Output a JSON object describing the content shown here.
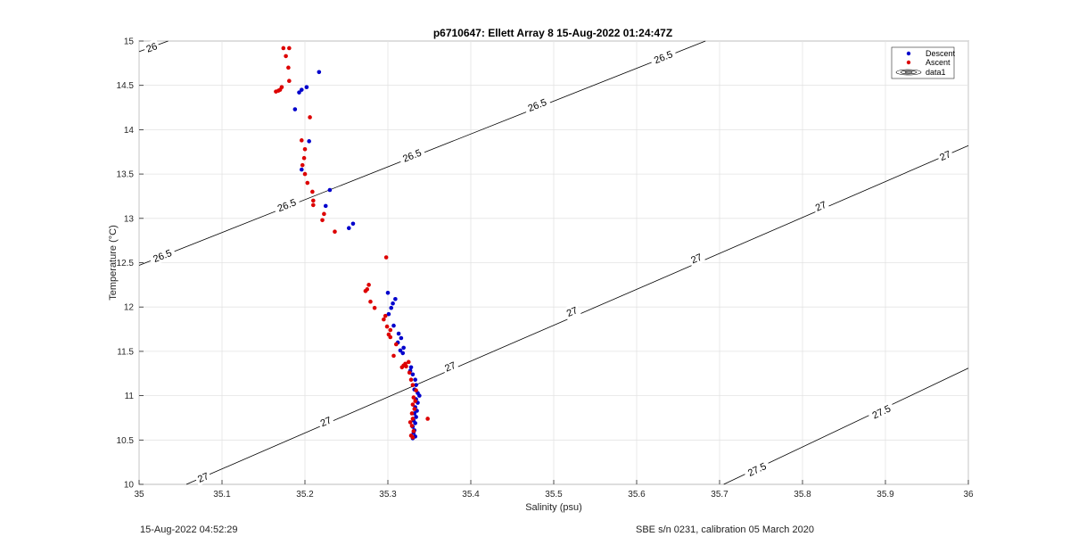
{
  "chart_data": {
    "type": "scatter",
    "title": "p6710647: Ellett Array 8 15-Aug-2022 01:24:47Z",
    "xlabel": "Salinity (psu)",
    "ylabel": "Temperature (°C)",
    "xlim": [
      35,
      36
    ],
    "ylim": [
      10,
      15
    ],
    "grid": true,
    "legend_position": "top-right",
    "x_ticks": [
      "35",
      "35.1",
      "35.2",
      "35.3",
      "35.4",
      "35.5",
      "35.6",
      "35.7",
      "35.8",
      "35.9",
      "36"
    ],
    "y_ticks": [
      "10",
      "10.5",
      "11",
      "11.5",
      "12",
      "12.5",
      "13",
      "13.5",
      "14",
      "14.5",
      "15"
    ],
    "series": [
      {
        "name": "Descent",
        "color": "#0000cc",
        "points": [
          [
            35.217,
            14.65
          ],
          [
            35.202,
            14.48
          ],
          [
            35.196,
            14.45
          ],
          [
            35.193,
            14.42
          ],
          [
            35.188,
            14.23
          ],
          [
            35.205,
            13.87
          ],
          [
            35.196,
            13.55
          ],
          [
            35.23,
            13.32
          ],
          [
            35.225,
            13.14
          ],
          [
            35.258,
            12.94
          ],
          [
            35.253,
            12.89
          ],
          [
            35.3,
            12.16
          ],
          [
            35.309,
            12.09
          ],
          [
            35.306,
            12.04
          ],
          [
            35.304,
            11.99
          ],
          [
            35.301,
            11.92
          ],
          [
            35.307,
            11.79
          ],
          [
            35.313,
            11.7
          ],
          [
            35.316,
            11.65
          ],
          [
            35.312,
            11.6
          ],
          [
            35.319,
            11.54
          ],
          [
            35.315,
            11.51
          ],
          [
            35.318,
            11.48
          ],
          [
            35.328,
            11.32
          ],
          [
            35.327,
            11.28
          ],
          [
            35.33,
            11.24
          ],
          [
            35.333,
            11.18
          ],
          [
            35.334,
            11.12
          ],
          [
            35.332,
            11.07
          ],
          [
            35.336,
            11.03
          ],
          [
            35.338,
            11.0
          ],
          [
            35.334,
            10.96
          ],
          [
            35.336,
            10.92
          ],
          [
            35.333,
            10.87
          ],
          [
            35.335,
            10.83
          ],
          [
            35.332,
            10.8
          ],
          [
            35.334,
            10.76
          ],
          [
            35.331,
            10.72
          ],
          [
            35.333,
            10.69
          ],
          [
            35.33,
            10.65
          ],
          [
            35.332,
            10.61
          ],
          [
            35.331,
            10.58
          ],
          [
            35.333,
            10.54
          ],
          [
            35.33,
            10.52
          ]
        ]
      },
      {
        "name": "Ascent",
        "color": "#dd0000",
        "points": [
          [
            35.174,
            14.92
          ],
          [
            35.181,
            14.92
          ],
          [
            35.177,
            14.83
          ],
          [
            35.18,
            14.7
          ],
          [
            35.181,
            14.55
          ],
          [
            35.172,
            14.48
          ],
          [
            35.17,
            14.45
          ],
          [
            35.168,
            14.44
          ],
          [
            35.165,
            14.43
          ],
          [
            35.206,
            14.14
          ],
          [
            35.196,
            13.88
          ],
          [
            35.2,
            13.78
          ],
          [
            35.199,
            13.68
          ],
          [
            35.197,
            13.6
          ],
          [
            35.2,
            13.5
          ],
          [
            35.203,
            13.4
          ],
          [
            35.209,
            13.3
          ],
          [
            35.21,
            13.2
          ],
          [
            35.21,
            13.15
          ],
          [
            35.223,
            13.05
          ],
          [
            35.221,
            12.98
          ],
          [
            35.236,
            12.85
          ],
          [
            35.298,
            12.56
          ],
          [
            35.277,
            12.25
          ],
          [
            35.275,
            12.2
          ],
          [
            35.273,
            12.18
          ],
          [
            35.279,
            12.06
          ],
          [
            35.284,
            11.99
          ],
          [
            35.297,
            11.9
          ],
          [
            35.295,
            11.86
          ],
          [
            35.299,
            11.78
          ],
          [
            35.303,
            11.74
          ],
          [
            35.301,
            11.69
          ],
          [
            35.303,
            11.66
          ],
          [
            35.31,
            11.58
          ],
          [
            35.307,
            11.45
          ],
          [
            35.325,
            11.38
          ],
          [
            35.321,
            11.36
          ],
          [
            35.319,
            11.34
          ],
          [
            35.322,
            11.33
          ],
          [
            35.317,
            11.32
          ],
          [
            35.326,
            11.26
          ],
          [
            35.328,
            11.18
          ],
          [
            35.33,
            11.12
          ],
          [
            35.334,
            11.06
          ],
          [
            35.331,
            10.98
          ],
          [
            35.333,
            10.94
          ],
          [
            35.33,
            10.9
          ],
          [
            35.332,
            10.85
          ],
          [
            35.329,
            10.8
          ],
          [
            35.33,
            10.74
          ],
          [
            35.348,
            10.74
          ],
          [
            35.327,
            10.7
          ],
          [
            35.329,
            10.66
          ],
          [
            35.331,
            10.6
          ],
          [
            35.328,
            10.55
          ],
          [
            35.33,
            10.53
          ]
        ]
      }
    ],
    "contours": {
      "series_name": "data1",
      "color": "#000000",
      "lines": [
        {
          "level": "26",
          "start": [
            35.0,
            14.88
          ],
          "end": [
            35.035,
            15.0
          ]
        },
        {
          "level": "26.5",
          "start": [
            35.0,
            12.47
          ],
          "end": [
            35.683,
            15.0
          ]
        },
        {
          "level": "27",
          "start": [
            35.057,
            10.0
          ],
          "end": [
            36.0,
            13.82
          ]
        },
        {
          "level": "27.5",
          "start": [
            35.705,
            10.0
          ],
          "end": [
            36.0,
            11.31
          ]
        }
      ],
      "labels": [
        {
          "text": "26",
          "x": 35.015,
          "y": 14.93
        },
        {
          "text": "26.5",
          "x": 35.028,
          "y": 12.58
        },
        {
          "text": "26.5",
          "x": 35.178,
          "y": 13.15
        },
        {
          "text": "26.5",
          "x": 35.329,
          "y": 13.71
        },
        {
          "text": "26.5",
          "x": 35.48,
          "y": 14.28
        },
        {
          "text": "26.5",
          "x": 35.632,
          "y": 14.82
        },
        {
          "text": "27",
          "x": 35.077,
          "y": 10.08
        },
        {
          "text": "27",
          "x": 35.225,
          "y": 10.71
        },
        {
          "text": "27",
          "x": 35.375,
          "y": 11.33
        },
        {
          "text": "27",
          "x": 35.522,
          "y": 11.95
        },
        {
          "text": "27",
          "x": 35.672,
          "y": 12.55
        },
        {
          "text": "27",
          "x": 35.822,
          "y": 13.14
        },
        {
          "text": "27",
          "x": 35.972,
          "y": 13.71
        },
        {
          "text": "27.5",
          "x": 35.745,
          "y": 10.17
        },
        {
          "text": "27.5",
          "x": 35.895,
          "y": 10.82
        }
      ]
    }
  },
  "footer": {
    "left": "15-Aug-2022 04:52:29",
    "right": "SBE s/n 0231, calibration 05 March 2020"
  }
}
